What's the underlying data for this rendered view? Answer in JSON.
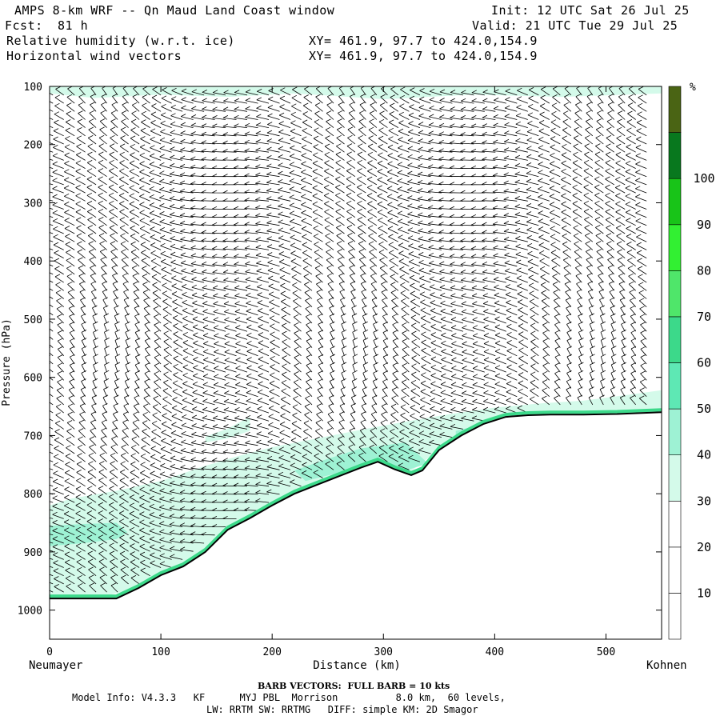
{
  "header": {
    "title": "AMPS 8-km WRF -- Qn Maud Land Coast window",
    "fcst_label": "Fcst:",
    "fcst_value": "81 h",
    "init": "Init: 12 UTC Sat 26 Jul 25",
    "valid": "Valid: 21 UTC Tue 29 Jul 25",
    "field1": "Relative humidity (w.r.t. ice)",
    "field2": "Horizontal wind vectors",
    "xy1": "XY= 461.9, 97.7 to 424.0,154.9",
    "xy2": "XY= 461.9, 97.7 to 424.0,154.9"
  },
  "chart_data": {
    "type": "cross-section",
    "xlabel": "Distance (km)",
    "ylabel": "Pressure (hPa)",
    "x_left_label": "Neumayer",
    "x_right_label": "Kohnen",
    "xlim": [
      0,
      550
    ],
    "ylim": [
      1050,
      100
    ],
    "x_ticks": [
      0,
      100,
      200,
      300,
      400,
      500
    ],
    "y_ticks": [
      100,
      200,
      300,
      400,
      500,
      600,
      700,
      800,
      900,
      1000
    ],
    "terrain_surface_pressure": {
      "x": [
        0,
        15,
        40,
        60,
        80,
        100,
        120,
        140,
        160,
        180,
        200,
        220,
        240,
        260,
        280,
        295,
        310,
        325,
        335,
        350,
        370,
        390,
        410,
        430,
        450,
        480,
        510,
        550
      ],
      "p": [
        980,
        980,
        980,
        980,
        962,
        940,
        925,
        900,
        862,
        842,
        820,
        800,
        785,
        770,
        755,
        745,
        758,
        768,
        760,
        725,
        700,
        680,
        668,
        665,
        664,
        664,
        663,
        660
      ]
    },
    "rh_regions": [
      {
        "level": 35,
        "x": [
          0,
          20,
          60,
          100,
          140,
          170,
          200,
          240,
          280,
          320,
          360,
          400,
          440,
          480,
          520,
          550,
          550,
          520,
          480,
          440,
          400,
          360,
          320,
          280,
          240,
          200,
          160,
          120,
          80,
          40,
          0
        ],
        "p": [
          820,
          808,
          795,
          778,
          752,
          735,
          720,
          705,
          690,
          676,
          663,
          652,
          645,
          640,
          630,
          622,
          660,
          664,
          664,
          665,
          668,
          710,
          768,
          752,
          785,
          820,
          862,
          925,
          962,
          980,
          980
        ]
      },
      {
        "level": 35,
        "x": [
          140,
          160,
          180,
          180,
          160,
          140
        ],
        "p": [
          702,
          688,
          668,
          692,
          705,
          712
        ]
      },
      {
        "level": 35,
        "x": [
          0,
          40,
          100,
          160,
          220,
          300,
          380,
          460,
          550,
          550,
          460,
          380,
          300,
          220,
          160,
          100,
          40,
          0
        ],
        "p": [
          100,
          100,
          100,
          100,
          100,
          100,
          100,
          100,
          100,
          112,
          118,
          114,
          122,
          112,
          118,
          114,
          120,
          112
        ]
      },
      {
        "level": 45,
        "x": [
          0,
          30,
          60,
          70,
          60,
          30,
          0
        ],
        "p": [
          855,
          852,
          850,
          866,
          878,
          885,
          890
        ]
      },
      {
        "level": 45,
        "x": [
          220,
          250,
          280,
          320,
          340,
          320,
          290,
          260,
          230
        ],
        "p": [
          760,
          740,
          722,
          712,
          748,
          760,
          748,
          764,
          778
        ]
      },
      {
        "level": 45,
        "x": [
          365,
          380,
          400,
          400,
          380,
          365
        ],
        "p": [
          692,
          685,
          680,
          692,
          700,
          706
        ]
      }
    ],
    "colorbar": {
      "unit": "%",
      "levels": [
        0,
        10,
        20,
        30,
        40,
        50,
        60,
        70,
        80,
        90,
        100,
        110
      ],
      "tick_labels": [
        "10",
        "20",
        "30",
        "40",
        "50",
        "60",
        "70",
        "80",
        "90",
        "100"
      ],
      "colors": [
        "#ffffff",
        "#ffffff",
        "#ffffff",
        "#d4faea",
        "#9ef2d4",
        "#5ee8b4",
        "#3cd98a",
        "#4fe66a",
        "#32f032",
        "#18c418",
        "#08781e",
        "#4a6414"
      ]
    }
  },
  "footer": {
    "barb_title": "BARB VECTORS:  FULL BARB = 10 kts",
    "model_info_1": "Model Info: V4.3.3   KF      MYJ PBL  Morrison          8.0 km,  60 levels,",
    "model_info_2": "LW: RRTM SW: RRTMG   DIFF: simple KM: 2D Smagor"
  }
}
